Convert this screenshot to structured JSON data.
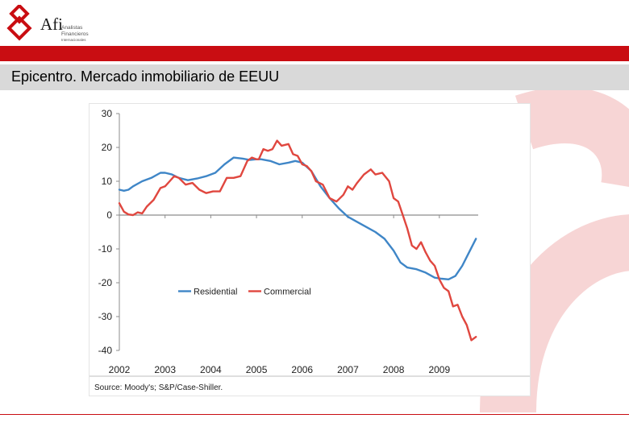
{
  "header": {
    "logo_brand": "Afi",
    "logo_sub_lines": [
      "Analistas",
      "Financieros",
      "Internacionales"
    ],
    "title": "Epicentro. Mercado inmobiliario de EEUU"
  },
  "colors": {
    "brand_red": "#c90d12",
    "residential": "#3f86c7",
    "commercial": "#e0473f"
  },
  "chart_data": {
    "type": "line",
    "title": "",
    "xlabel": "",
    "ylabel": "",
    "ylim": [
      -40,
      30
    ],
    "xlim": [
      2002,
      2009.85
    ],
    "y_ticks": [
      30,
      20,
      10,
      0,
      -10,
      -20,
      -30,
      -40
    ],
    "x_tick_labels": [
      "2002",
      "2003",
      "2004",
      "2005",
      "2006",
      "2007",
      "2008",
      "2009"
    ],
    "legend_placement": "center-left",
    "source": "Source: Moody's; S&P/Case-Shiller.",
    "series": [
      {
        "name": "Residential",
        "color": "#3f86c7",
        "x": [
          2002.0,
          2002.1,
          2002.2,
          2002.3,
          2002.5,
          2002.7,
          2002.9,
          2003.0,
          2003.15,
          2003.3,
          2003.5,
          2003.7,
          2003.9,
          2004.1,
          2004.3,
          2004.5,
          2004.7,
          2004.85,
          2005.0,
          2005.1,
          2005.3,
          2005.5,
          2005.7,
          2005.85,
          2006.0,
          2006.2,
          2006.4,
          2006.6,
          2006.8,
          2007.0,
          2007.2,
          2007.4,
          2007.6,
          2007.8,
          2008.0,
          2008.15,
          2008.3,
          2008.5,
          2008.7,
          2008.9,
          2009.05,
          2009.2,
          2009.35,
          2009.5,
          2009.65,
          2009.8
        ],
        "values": [
          7.5,
          7.2,
          7.5,
          8.5,
          10.0,
          11.0,
          12.5,
          12.5,
          12.0,
          11.0,
          10.3,
          10.8,
          11.5,
          12.5,
          15.0,
          17.0,
          16.7,
          16.3,
          16.5,
          16.5,
          16.0,
          15.0,
          15.5,
          16.0,
          15.5,
          13.0,
          8.5,
          5.0,
          2.0,
          -0.5,
          -2.0,
          -3.5,
          -5.0,
          -7.0,
          -10.5,
          -14.0,
          -15.5,
          -16.0,
          -17.0,
          -18.5,
          -18.8,
          -19.0,
          -18.0,
          -15.0,
          -11.0,
          -7.0
        ]
      },
      {
        "name": "Commercial",
        "color": "#e0473f",
        "x": [
          2002.0,
          2002.1,
          2002.2,
          2002.3,
          2002.4,
          2002.5,
          2002.6,
          2002.75,
          2002.9,
          2003.0,
          2003.1,
          2003.2,
          2003.3,
          2003.45,
          2003.6,
          2003.75,
          2003.9,
          2004.05,
          2004.2,
          2004.35,
          2004.5,
          2004.65,
          2004.8,
          2004.9,
          2005.0,
          2005.05,
          2005.15,
          2005.25,
          2005.35,
          2005.45,
          2005.55,
          2005.7,
          2005.8,
          2005.9,
          2006.0,
          2006.1,
          2006.2,
          2006.3,
          2006.45,
          2006.6,
          2006.75,
          2006.9,
          2007.0,
          2007.1,
          2007.2,
          2007.35,
          2007.5,
          2007.6,
          2007.75,
          2007.9,
          2008.0,
          2008.1,
          2008.2,
          2008.3,
          2008.4,
          2008.5,
          2008.6,
          2008.7,
          2008.8,
          2008.9,
          2009.0,
          2009.1,
          2009.2,
          2009.3,
          2009.4,
          2009.5,
          2009.6,
          2009.7,
          2009.8
        ],
        "values": [
          3.5,
          1.0,
          0.2,
          0.0,
          0.8,
          0.5,
          2.5,
          4.5,
          8.0,
          8.5,
          10.0,
          11.5,
          11.0,
          9.0,
          9.5,
          7.5,
          6.5,
          7.0,
          7.0,
          11.0,
          11.0,
          11.5,
          16.0,
          17.0,
          16.5,
          16.5,
          19.5,
          19.0,
          19.5,
          22.0,
          20.5,
          21.0,
          18.0,
          17.5,
          15.0,
          14.5,
          13.0,
          10.0,
          9.0,
          5.0,
          4.0,
          6.0,
          8.5,
          7.5,
          9.5,
          12.0,
          13.5,
          12.0,
          12.5,
          10.0,
          5.0,
          4.0,
          0.0,
          -4.0,
          -9.0,
          -10.0,
          -8.0,
          -11.0,
          -13.5,
          -15.0,
          -19.0,
          -21.5,
          -22.5,
          -27.0,
          -26.5,
          -30.0,
          -32.5,
          -37.0,
          -36.0
        ]
      }
    ]
  }
}
